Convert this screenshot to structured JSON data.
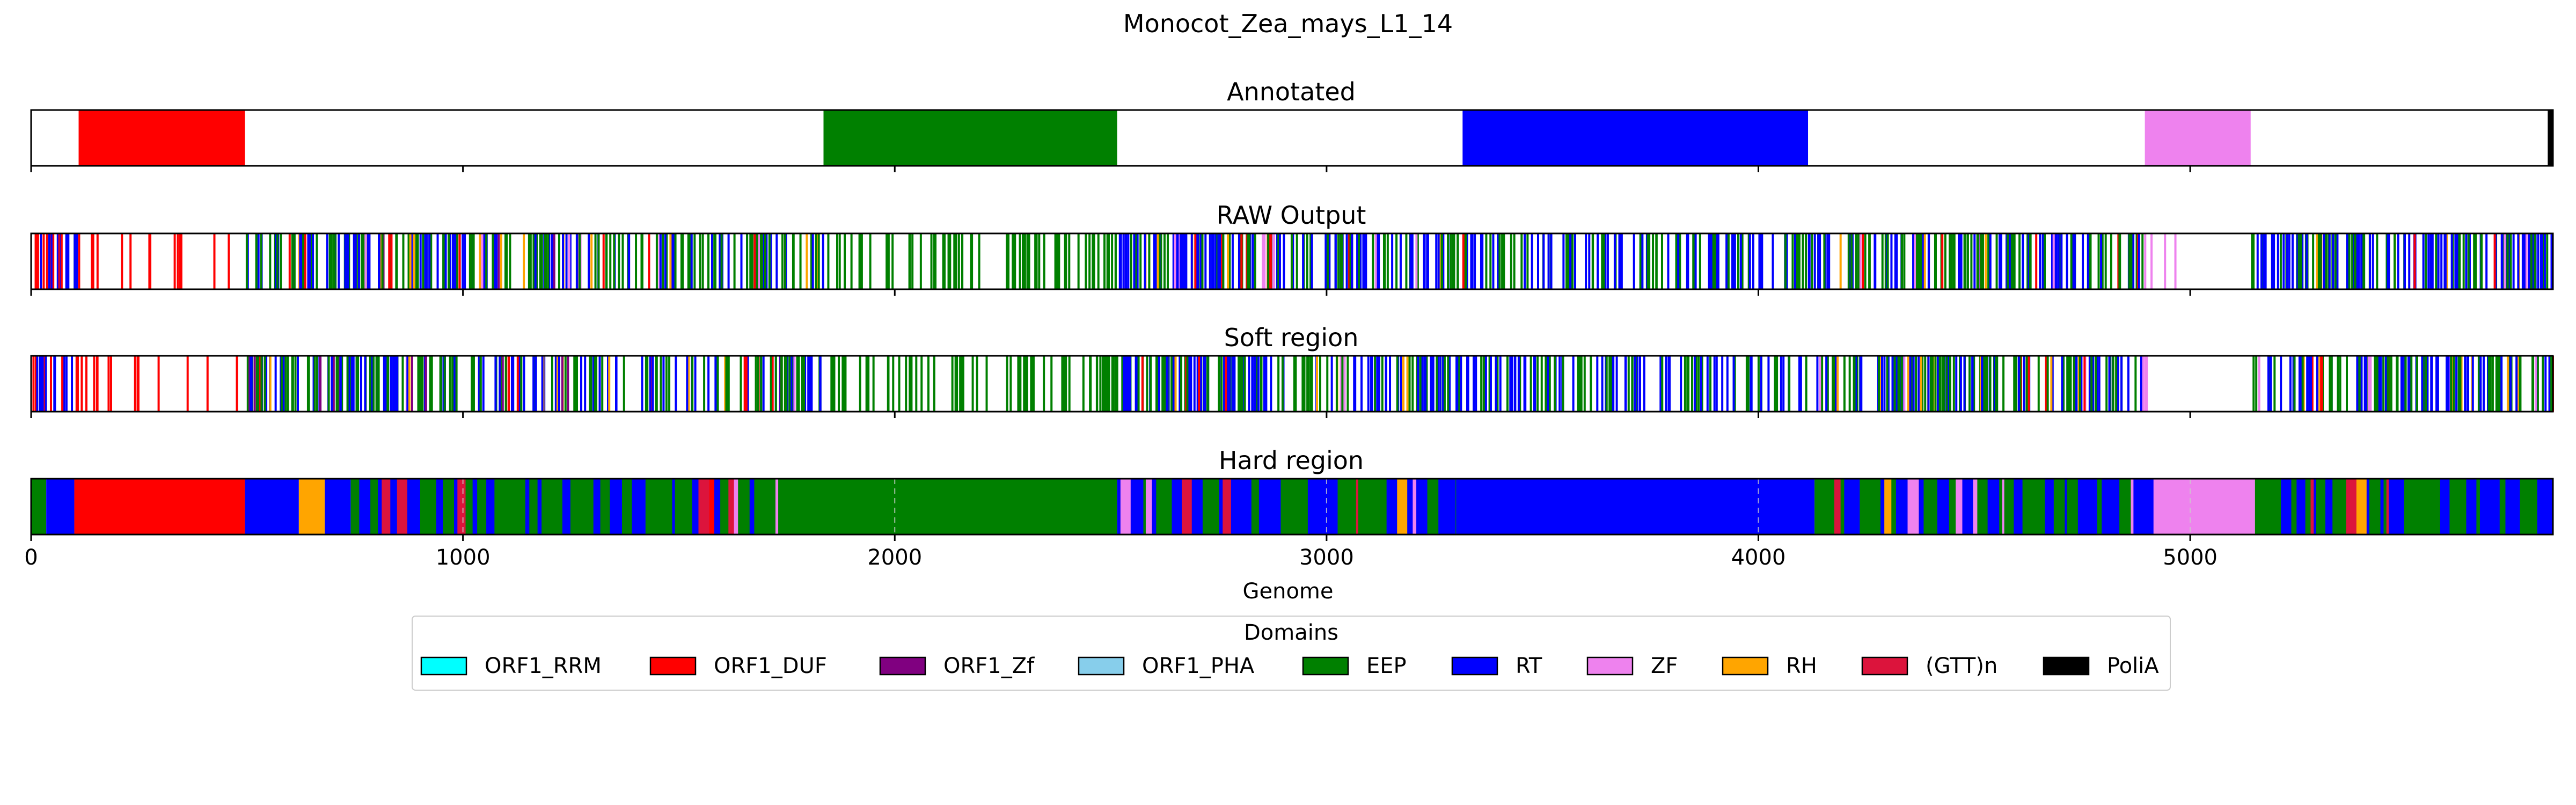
{
  "figure": {
    "title": "Monocot_Zea_mays_L1_14"
  },
  "chart_data": {
    "type": "multi-track genome domain bar",
    "xlabel": "Genome",
    "xlim": [
      0,
      5840
    ],
    "xticks": [
      0,
      1000,
      2000,
      3000,
      4000,
      5000
    ],
    "xtick_labels": [
      "0",
      "1000",
      "2000",
      "3000",
      "4000",
      "5000"
    ],
    "legend": {
      "title": "Domains",
      "placement": "below",
      "entries": [
        {
          "label": "ORF1_RRM",
          "color": "#00ffff"
        },
        {
          "label": "ORF1_DUF",
          "color": "#ff0000"
        },
        {
          "label": "ORF1_Zf",
          "color": "#800080"
        },
        {
          "label": "ORF1_PHA",
          "color": "#87ceeb"
        },
        {
          "label": "EEP",
          "color": "#008000"
        },
        {
          "label": "RT",
          "color": "#0000ff"
        },
        {
          "label": "ZF",
          "color": "#ee82ee"
        },
        {
          "label": "RH",
          "color": "#ffa500"
        },
        {
          "label": "(GTT)n",
          "color": "#dc143c"
        },
        {
          "label": "PoliA",
          "color": "#000000"
        }
      ]
    },
    "tracks": [
      {
        "title": "Annotated",
        "kind": "blocks",
        "segments": [
          {
            "start": 110,
            "end": 495,
            "domain": "ORF1_DUF"
          },
          {
            "start": 1835,
            "end": 2515,
            "domain": "EEP"
          },
          {
            "start": 3315,
            "end": 4115,
            "domain": "RT"
          },
          {
            "start": 4895,
            "end": 5140,
            "domain": "ZF"
          },
          {
            "start": 5828,
            "end": 5840,
            "domain": "PoliA"
          }
        ]
      },
      {
        "title": "RAW Output",
        "kind": "ticks",
        "regions": [
          {
            "start": 0,
            "end": 110,
            "domains": [
              "RT",
              "ORF1_DUF",
              "EEP"
            ],
            "n": 22
          },
          {
            "start": 110,
            "end": 495,
            "domains": [
              "ORF1_DUF"
            ],
            "n": 14
          },
          {
            "start": 495,
            "end": 1840,
            "domains": [
              "EEP",
              "RT",
              "ORF1_DUF",
              "RH",
              "ZF",
              "ORF1_Zf"
            ],
            "n": 240
          },
          {
            "start": 1840,
            "end": 2515,
            "domains": [
              "EEP"
            ],
            "n": 70
          },
          {
            "start": 2515,
            "end": 3320,
            "domains": [
              "RT",
              "EEP",
              "ORF1_DUF",
              "RH",
              "ZF"
            ],
            "n": 160
          },
          {
            "start": 3320,
            "end": 4120,
            "domains": [
              "RT",
              "EEP"
            ],
            "n": 110
          },
          {
            "start": 4120,
            "end": 4890,
            "domains": [
              "EEP",
              "RT",
              "ZF",
              "ORF1_DUF",
              "RH"
            ],
            "n": 140
          },
          {
            "start": 4890,
            "end": 4970,
            "domains": [
              "ZF"
            ],
            "n": 4
          },
          {
            "start": 5140,
            "end": 5840,
            "domains": [
              "RT",
              "EEP",
              "ORF1_DUF",
              "ZF",
              "RH"
            ],
            "n": 150
          }
        ]
      },
      {
        "title": "Soft region",
        "kind": "ticks",
        "regions": [
          {
            "start": 0,
            "end": 110,
            "domains": [
              "RT",
              "ORF1_DUF",
              "EEP"
            ],
            "n": 22
          },
          {
            "start": 110,
            "end": 495,
            "domains": [
              "ORF1_DUF"
            ],
            "n": 14
          },
          {
            "start": 495,
            "end": 1840,
            "domains": [
              "EEP",
              "RT",
              "ORF1_DUF",
              "RH",
              "ZF",
              "ORF1_Zf"
            ],
            "n": 240
          },
          {
            "start": 1840,
            "end": 2515,
            "domains": [
              "EEP"
            ],
            "n": 70
          },
          {
            "start": 2515,
            "end": 3320,
            "domains": [
              "RT",
              "EEP",
              "ORF1_DUF",
              "RH",
              "ZF"
            ],
            "n": 160
          },
          {
            "start": 3320,
            "end": 4120,
            "domains": [
              "RT",
              "EEP"
            ],
            "n": 110
          },
          {
            "start": 4120,
            "end": 4890,
            "domains": [
              "EEP",
              "RT",
              "ZF",
              "ORF1_DUF",
              "RH"
            ],
            "n": 140
          },
          {
            "start": 4890,
            "end": 4970,
            "domains": [
              "ZF"
            ],
            "n": 4
          },
          {
            "start": 5140,
            "end": 5840,
            "domains": [
              "RT",
              "EEP",
              "ORF1_DUF",
              "ZF",
              "RH"
            ],
            "n": 150
          }
        ]
      },
      {
        "title": "Hard region",
        "kind": "blocks",
        "segments": [
          {
            "start": 0,
            "end": 35,
            "domain": "EEP"
          },
          {
            "start": 35,
            "end": 100,
            "domain": "RT"
          },
          {
            "start": 100,
            "end": 495,
            "domain": "ORF1_DUF"
          },
          {
            "start": 495,
            "end": 620,
            "domain": "RT"
          },
          {
            "start": 620,
            "end": 680,
            "domain": "RH"
          },
          {
            "start": 680,
            "end": 740,
            "domain": "RT"
          },
          {
            "start": 740,
            "end": 1780,
            "domain": "mixed"
          },
          {
            "start": 1780,
            "end": 2515,
            "domain": "EEP"
          },
          {
            "start": 2515,
            "end": 3300,
            "domain": "mixed"
          },
          {
            "start": 3300,
            "end": 4130,
            "domain": "RT"
          },
          {
            "start": 4130,
            "end": 4915,
            "domain": "mixed"
          },
          {
            "start": 4915,
            "end": 5150,
            "domain": "ZF"
          },
          {
            "start": 5150,
            "end": 5840,
            "domain": "mixed"
          }
        ],
        "mixed_domains": [
          "RT",
          "EEP",
          "ORF1_DUF",
          "RH",
          "ZF",
          "(GTT)n"
        ]
      }
    ]
  }
}
